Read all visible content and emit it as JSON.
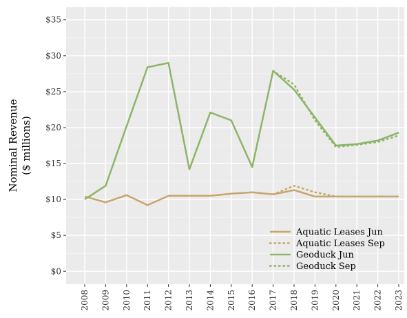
{
  "chart_data": {
    "type": "line",
    "title": "",
    "xlabel": "",
    "ylabel_lines": [
      "Nominal Revenue",
      "($ millions)"
    ],
    "categories": [
      "2008",
      "2009",
      "2010",
      "2011",
      "2012",
      "2013",
      "2014",
      "2015",
      "2016",
      "2017",
      "2018",
      "2019",
      "2020",
      "2021",
      "2022",
      "2023"
    ],
    "y_ticks": [
      0,
      5,
      10,
      15,
      20,
      25,
      30,
      35
    ],
    "y_tick_labels": [
      "$0",
      "$5",
      "$10",
      "$15",
      "$20",
      "$25",
      "$30",
      "$35"
    ],
    "ylim": [
      -1.8,
      36.8
    ],
    "grid": true,
    "legend_position": "bottom-right",
    "series": [
      {
        "name": "Aquatic Leases Jun",
        "color": "#c9a46b",
        "dash": "solid",
        "values": [
          10.4,
          9.6,
          10.6,
          9.2,
          10.5,
          10.5,
          10.5,
          10.8,
          11.0,
          10.7,
          11.3,
          10.4,
          10.4,
          10.4,
          10.4,
          10.4
        ]
      },
      {
        "name": "Aquatic Leases Sep",
        "color": "#c9a46b",
        "dash": "dotted",
        "values": [
          null,
          null,
          null,
          null,
          null,
          null,
          null,
          null,
          null,
          10.7,
          11.9,
          11.0,
          10.4,
          10.4,
          10.4,
          10.4
        ]
      },
      {
        "name": "Geoduck Jun",
        "color": "#8db468",
        "dash": "solid",
        "values": [
          10.0,
          11.9,
          20.2,
          28.4,
          29.0,
          14.2,
          22.1,
          21.0,
          14.5,
          27.9,
          25.3,
          21.4,
          17.5,
          17.7,
          18.2,
          19.3
        ]
      },
      {
        "name": "Geoduck Sep",
        "color": "#8db468",
        "dash": "dotted",
        "values": [
          null,
          null,
          null,
          null,
          null,
          null,
          null,
          null,
          null,
          27.9,
          26.0,
          21.0,
          17.3,
          17.6,
          18.0,
          18.9
        ]
      }
    ]
  }
}
